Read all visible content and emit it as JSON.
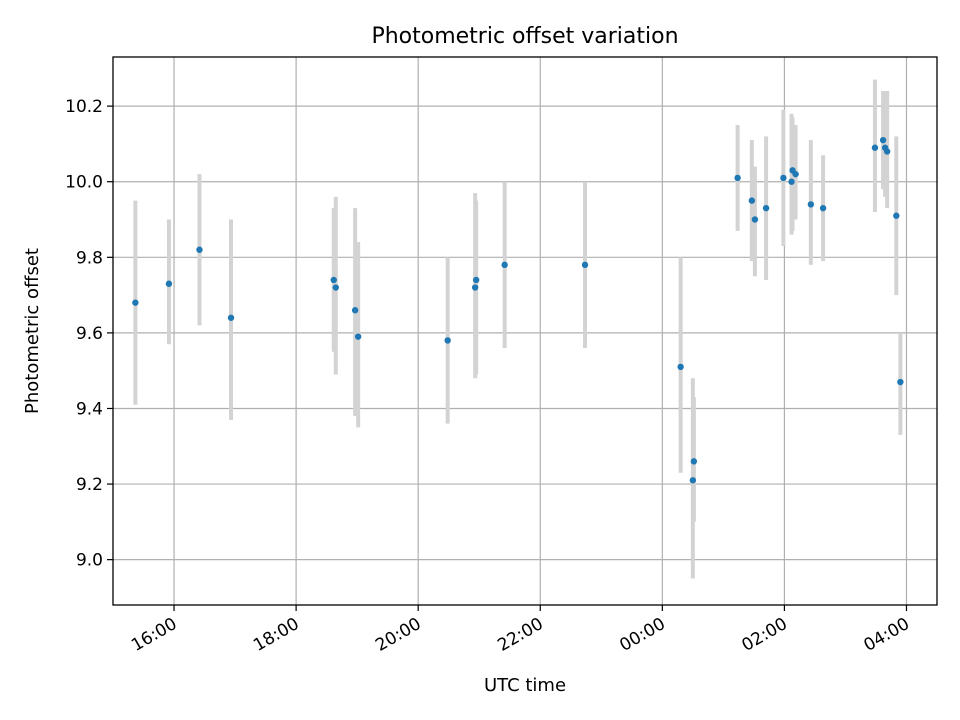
{
  "chart_data": {
    "type": "scatter",
    "title": "Photometric offset variation",
    "xlabel": "UTC time",
    "ylabel": "Photometric offset",
    "xlim": [
      "15:00",
      "04:30"
    ],
    "ylim": [
      8.88,
      10.33
    ],
    "grid": true,
    "x_ticks": [
      "16:00",
      "18:00",
      "20:00",
      "22:00",
      "00:00",
      "02:00",
      "04:00"
    ],
    "y_ticks": [
      "9.0",
      "9.2",
      "9.4",
      "9.6",
      "9.8",
      "10.0",
      "10.2"
    ],
    "colors": {
      "points": "#1f77b4",
      "error_bars": "#d3d3d3",
      "grid": "#b0b0b0"
    },
    "series": [
      {
        "points": [
          {
            "x": "15:22",
            "y": 9.68,
            "ymin": 9.41,
            "ymax": 9.95
          },
          {
            "x": "15:55",
            "y": 9.73,
            "ymin": 9.57,
            "ymax": 9.9
          },
          {
            "x": "16:25",
            "y": 9.82,
            "ymin": 9.62,
            "ymax": 10.02
          },
          {
            "x": "16:56",
            "y": 9.64,
            "ymin": 9.37,
            "ymax": 9.9
          },
          {
            "x": "18:37",
            "y": 9.74,
            "ymin": 9.55,
            "ymax": 9.93
          },
          {
            "x": "18:39",
            "y": 9.72,
            "ymin": 9.49,
            "ymax": 9.96
          },
          {
            "x": "18:58",
            "y": 9.66,
            "ymin": 9.38,
            "ymax": 9.93
          },
          {
            "x": "19:01",
            "y": 9.59,
            "ymin": 9.35,
            "ymax": 9.84
          },
          {
            "x": "20:29",
            "y": 9.58,
            "ymin": 9.36,
            "ymax": 9.8
          },
          {
            "x": "20:56",
            "y": 9.72,
            "ymin": 9.48,
            "ymax": 9.97
          },
          {
            "x": "20:57",
            "y": 9.74,
            "ymin": 9.49,
            "ymax": 9.95
          },
          {
            "x": "21:25",
            "y": 9.78,
            "ymin": 9.56,
            "ymax": 10.0
          },
          {
            "x": "22:44",
            "y": 9.78,
            "ymin": 9.56,
            "ymax": 10.0
          },
          {
            "x": "00:18",
            "y": 9.51,
            "ymin": 9.23,
            "ymax": 9.8
          },
          {
            "x": "00:30",
            "y": 9.21,
            "ymin": 8.95,
            "ymax": 9.48
          },
          {
            "x": "00:31",
            "y": 9.26,
            "ymin": 9.1,
            "ymax": 9.43
          },
          {
            "x": "01:14",
            "y": 10.01,
            "ymin": 9.87,
            "ymax": 10.15
          },
          {
            "x": "01:28",
            "y": 9.95,
            "ymin": 9.79,
            "ymax": 10.11
          },
          {
            "x": "01:31",
            "y": 9.9,
            "ymin": 9.75,
            "ymax": 10.04
          },
          {
            "x": "01:42",
            "y": 9.93,
            "ymin": 9.74,
            "ymax": 10.12
          },
          {
            "x": "01:59",
            "y": 10.01,
            "ymin": 9.83,
            "ymax": 10.19
          },
          {
            "x": "02:07",
            "y": 10.0,
            "ymin": 9.86,
            "ymax": 10.18
          },
          {
            "x": "02:08",
            "y": 10.03,
            "ymin": 9.87,
            "ymax": 10.17
          },
          {
            "x": "02:11",
            "y": 10.02,
            "ymin": 9.9,
            "ymax": 10.15
          },
          {
            "x": "02:26",
            "y": 9.94,
            "ymin": 9.78,
            "ymax": 10.11
          },
          {
            "x": "02:38",
            "y": 9.93,
            "ymin": 9.79,
            "ymax": 10.07
          },
          {
            "x": "03:29",
            "y": 10.09,
            "ymin": 9.92,
            "ymax": 10.27
          },
          {
            "x": "03:37",
            "y": 10.11,
            "ymin": 9.98,
            "ymax": 10.24
          },
          {
            "x": "03:39",
            "y": 10.09,
            "ymin": 9.96,
            "ymax": 10.24
          },
          {
            "x": "03:41",
            "y": 10.08,
            "ymin": 9.93,
            "ymax": 10.24
          },
          {
            "x": "03:50",
            "y": 9.91,
            "ymin": 9.7,
            "ymax": 10.12
          },
          {
            "x": "03:54",
            "y": 9.47,
            "ymin": 9.33,
            "ymax": 9.6
          }
        ]
      }
    ]
  }
}
